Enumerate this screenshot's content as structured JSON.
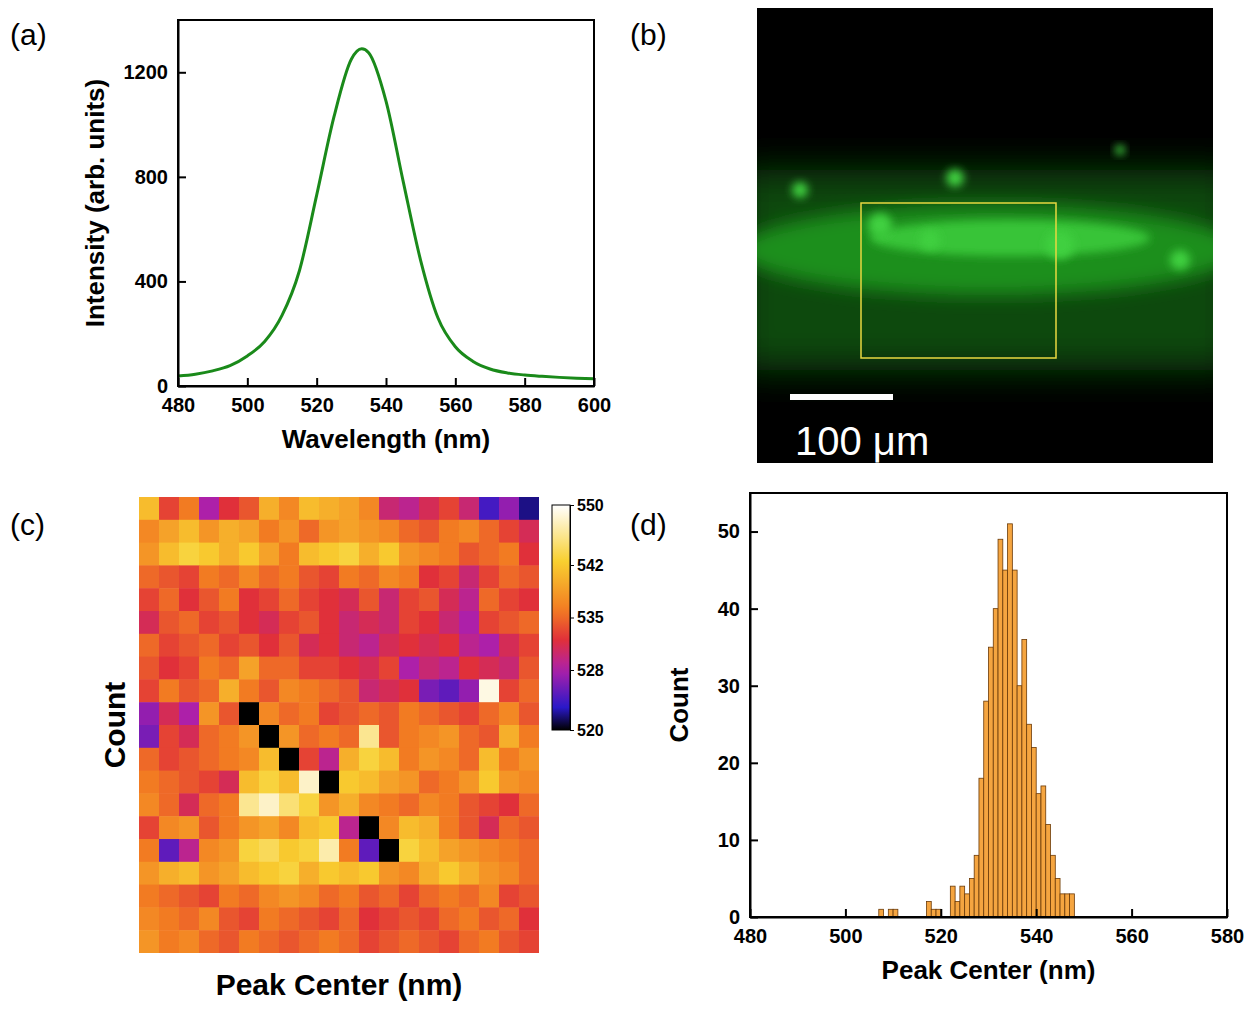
{
  "chart_data": [
    {
      "type": "line",
      "panel": "(a)",
      "x": [
        480,
        485,
        490,
        495,
        500,
        505,
        510,
        515,
        520,
        525,
        530,
        533,
        535,
        540,
        545,
        550,
        555,
        560,
        565,
        570,
        575,
        580,
        585,
        590,
        595,
        600
      ],
      "values": [
        38,
        45,
        58,
        78,
        115,
        170,
        270,
        440,
        730,
        1030,
        1250,
        1290,
        1275,
        1090,
        780,
        480,
        260,
        150,
        95,
        65,
        50,
        42,
        37,
        33,
        30,
        28
      ],
      "color": "#1a8a1a",
      "xlabel": "Wavelength (nm)",
      "ylabel": "Intensity (arb. units)",
      "xlim": [
        480,
        600
      ],
      "xticks": [
        480,
        500,
        520,
        540,
        560,
        580,
        600
      ],
      "ylim": [
        0,
        1400
      ],
      "yticks": [
        0,
        400,
        800,
        1200
      ]
    },
    {
      "type": "image",
      "panel": "(b)",
      "scale_bar_label": "100 μm"
    },
    {
      "type": "heatmap",
      "panel": "(c)",
      "xlabel": "Peak Center (nm)",
      "ylabel": "Count",
      "tick_labels": false,
      "values": [
        [
          541,
          533,
          536,
          528,
          532,
          534,
          540,
          537,
          541,
          540,
          539,
          537,
          530,
          529,
          531,
          533,
          530,
          524,
          527,
          522
        ],
        [
          537,
          539,
          541,
          538,
          540,
          539,
          536,
          538,
          535,
          538,
          539,
          538,
          537,
          535,
          534,
          536,
          537,
          535,
          533,
          531
        ],
        [
          538,
          541,
          543,
          542,
          540,
          542,
          539,
          536,
          541,
          542,
          543,
          540,
          542,
          538,
          537,
          536,
          534,
          535,
          536,
          532
        ],
        [
          535,
          534,
          533,
          536,
          535,
          537,
          535,
          536,
          534,
          533,
          536,
          535,
          537,
          536,
          532,
          533,
          530,
          533,
          535,
          534
        ],
        [
          533,
          535,
          532,
          534,
          536,
          532,
          533,
          535,
          533,
          532,
          531,
          534,
          530,
          533,
          534,
          531,
          529,
          535,
          533,
          532
        ],
        [
          531,
          534,
          535,
          533,
          534,
          532,
          531,
          533,
          534,
          532,
          530,
          531,
          530,
          533,
          532,
          530,
          528,
          533,
          534,
          535
        ],
        [
          535,
          533,
          534,
          535,
          533,
          534,
          532,
          534,
          531,
          532,
          530,
          529,
          531,
          532,
          531,
          532,
          529,
          528,
          531,
          533
        ],
        [
          534,
          532,
          533,
          536,
          535,
          539,
          535,
          535,
          533,
          533,
          532,
          531,
          533,
          528,
          530,
          529,
          532,
          531,
          530,
          534
        ],
        [
          533,
          536,
          534,
          535,
          540,
          536,
          534,
          537,
          536,
          535,
          534,
          530,
          531,
          532,
          526,
          525,
          527,
          549,
          533,
          535
        ],
        [
          527,
          531,
          528,
          538,
          534,
          520,
          537,
          535,
          536,
          533,
          534,
          535,
          534,
          536,
          535,
          534,
          533,
          535,
          537,
          534
        ],
        [
          526,
          533,
          531,
          535,
          536,
          538,
          520,
          538,
          535,
          536,
          535,
          546,
          534,
          536,
          537,
          538,
          535,
          534,
          540,
          536
        ],
        [
          535,
          533,
          534,
          535,
          536,
          537,
          541,
          520,
          533,
          529,
          540,
          543,
          541,
          536,
          538,
          537,
          535,
          541,
          536,
          538
        ],
        [
          536,
          535,
          534,
          533,
          531,
          541,
          543,
          541,
          548,
          520,
          542,
          541,
          539,
          538,
          535,
          536,
          538,
          542,
          538,
          537
        ],
        [
          537,
          535,
          531,
          535,
          536,
          546,
          548,
          545,
          543,
          538,
          540,
          537,
          536,
          535,
          537,
          536,
          534,
          533,
          532,
          535
        ],
        [
          533,
          537,
          538,
          534,
          536,
          538,
          539,
          537,
          541,
          542,
          529,
          520,
          537,
          541,
          540,
          536,
          534,
          531,
          535,
          534
        ],
        [
          536,
          525,
          529,
          537,
          538,
          543,
          544,
          542,
          543,
          547,
          536,
          525,
          520,
          543,
          541,
          539,
          538,
          537,
          536,
          535
        ],
        [
          538,
          540,
          541,
          538,
          539,
          541,
          542,
          543,
          540,
          542,
          541,
          542,
          538,
          537,
          540,
          542,
          540,
          538,
          537,
          535
        ],
        [
          536,
          535,
          534,
          533,
          536,
          535,
          537,
          538,
          537,
          535,
          536,
          534,
          535,
          533,
          535,
          536,
          535,
          537,
          533,
          534
        ],
        [
          537,
          536,
          535,
          537,
          534,
          533,
          536,
          535,
          534,
          533,
          535,
          532,
          533,
          534,
          533,
          535,
          536,
          534,
          535,
          532
        ],
        [
          538,
          536,
          537,
          535,
          534,
          536,
          535,
          534,
          535,
          536,
          535,
          533,
          534,
          535,
          534,
          533,
          535,
          536,
          534,
          533
        ]
      ],
      "colorbar_lim": [
        520,
        550
      ],
      "colorbar_ticks": [
        520,
        528,
        535,
        542,
        550
      ]
    },
    {
      "type": "histogram",
      "panel": "(d)",
      "bins": [
        507,
        508,
        509,
        510,
        511,
        512,
        513,
        514,
        515,
        516,
        517,
        518,
        519,
        520,
        521,
        522,
        523,
        524,
        525,
        526,
        527,
        528,
        529,
        530,
        531,
        532,
        533,
        534,
        535,
        536,
        537,
        538,
        539,
        540,
        541,
        542,
        543,
        544,
        545,
        546,
        547,
        548
      ],
      "values": [
        1,
        0,
        1,
        1,
        0,
        0,
        0,
        0,
        0,
        0,
        2,
        1,
        1,
        0,
        0,
        4,
        2,
        4,
        3,
        5,
        8,
        18,
        28,
        35,
        40,
        49,
        45,
        51,
        45,
        30,
        36,
        25,
        22,
        16,
        17,
        12,
        8,
        5,
        3,
        3,
        3
      ],
      "color": "#f5a540",
      "xlabel": "Peak Center (nm)",
      "ylabel": "Count",
      "xlim": [
        480,
        580
      ],
      "xticks": [
        480,
        500,
        520,
        540,
        560,
        580
      ],
      "ylim": [
        0,
        55
      ],
      "yticks": [
        0,
        10,
        20,
        30,
        40,
        50
      ]
    }
  ]
}
